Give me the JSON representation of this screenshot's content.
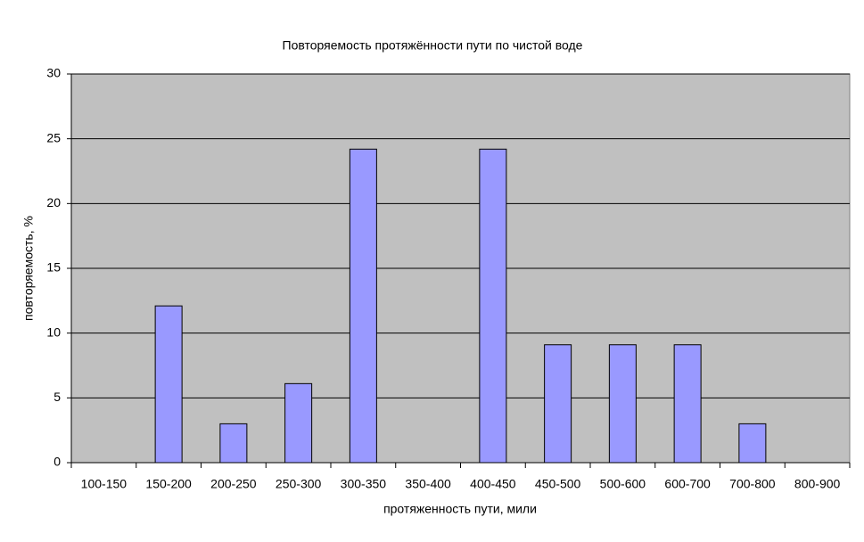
{
  "chart_data": {
    "type": "bar",
    "title": "Повторяемость протяжённости пути по чистой воде",
    "x_label": "протяженность пути, мили",
    "y_label": "повторяемость, %",
    "categories": [
      "100-150",
      "150-200",
      "200-250",
      "250-300",
      "300-350",
      "350-400",
      "400-450",
      "450-500",
      "500-600",
      "600-700",
      "700-800",
      "800-900"
    ],
    "values": [
      0,
      12.1,
      3,
      6.1,
      24.2,
      0,
      24.2,
      9.1,
      9.1,
      9.1,
      3,
      0
    ],
    "color": "#9999ff",
    "ylim": [
      0,
      30
    ],
    "yticks": [
      0,
      5,
      10,
      15,
      20,
      25,
      30
    ],
    "grid": true
  }
}
